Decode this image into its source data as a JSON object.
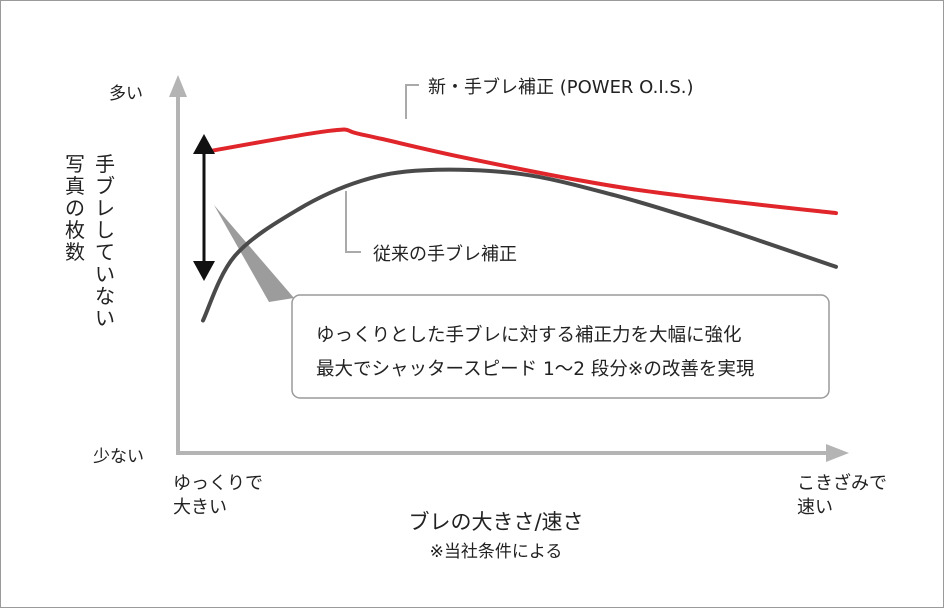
{
  "chart_data": {
    "type": "line",
    "ylabel_top": "多い",
    "ylabel_bottom": "少ない",
    "ylabel_lines": [
      "手ブレしていない",
      "写真の枚数"
    ],
    "xlabel": "ブレの大きさ/速さ",
    "x_left_label": [
      "ゆっくりで",
      "大きい"
    ],
    "x_right_label": [
      "こきざみで",
      "速い"
    ],
    "footnote": "※当社条件による",
    "callout_lines": [
      "ゆっくりとした手ブレに対する補正力を大幅に強化",
      "最大でシャッタースピード 1～2 段分※の改善を実現"
    ],
    "x_range": [
      0,
      100
    ],
    "y_range": [
      0,
      100
    ],
    "grid": false,
    "series": [
      {
        "name": "新・手ブレ補正 (POWER O.I.S.)",
        "color": "#e0262b",
        "x": [
          0,
          20,
          25,
          40,
          60,
          75,
          100
        ],
        "y": [
          84,
          90,
          89,
          83,
          76,
          72,
          67
        ]
      },
      {
        "name": "従来の手ブレ補正",
        "color": "#4a4a4a",
        "x": [
          0,
          5,
          15,
          25,
          35,
          50,
          65,
          80,
          100
        ],
        "y": [
          37,
          55,
          68,
          76,
          79,
          78,
          72,
          64,
          52
        ]
      }
    ]
  }
}
